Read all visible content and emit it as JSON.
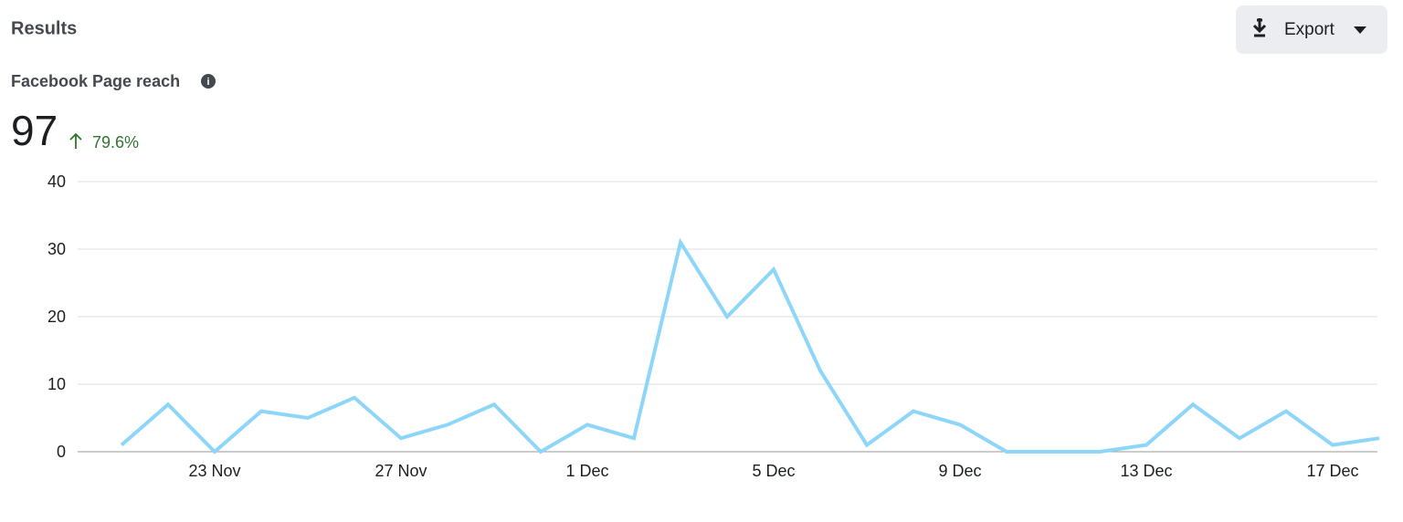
{
  "header": {
    "title": "Results",
    "export": "Export"
  },
  "metric": {
    "title": "Facebook Page reach",
    "value": "97",
    "change": "79.6%"
  },
  "chart_data": {
    "type": "line",
    "categories": [
      null,
      null,
      "23 Nov",
      null,
      null,
      null,
      "27 Nov",
      null,
      null,
      null,
      "1 Dec",
      null,
      null,
      null,
      "5 Dec",
      null,
      null,
      null,
      "9 Dec",
      null,
      null,
      null,
      "13 Dec",
      null,
      null,
      null,
      "17 Dec",
      null
    ],
    "series": [
      {
        "color": "#8dd6f9",
        "values": [
          1,
          7,
          0,
          6,
          5,
          8,
          2,
          4,
          7,
          0,
          4,
          2,
          31,
          20,
          27,
          12,
          1,
          6,
          4,
          0,
          0,
          0,
          1,
          7,
          2,
          6,
          1,
          2
        ]
      }
    ],
    "ylim": [
      0,
      40
    ],
    "yticks": [
      0,
      10,
      20,
      30,
      40
    ],
    "grid": true
  }
}
